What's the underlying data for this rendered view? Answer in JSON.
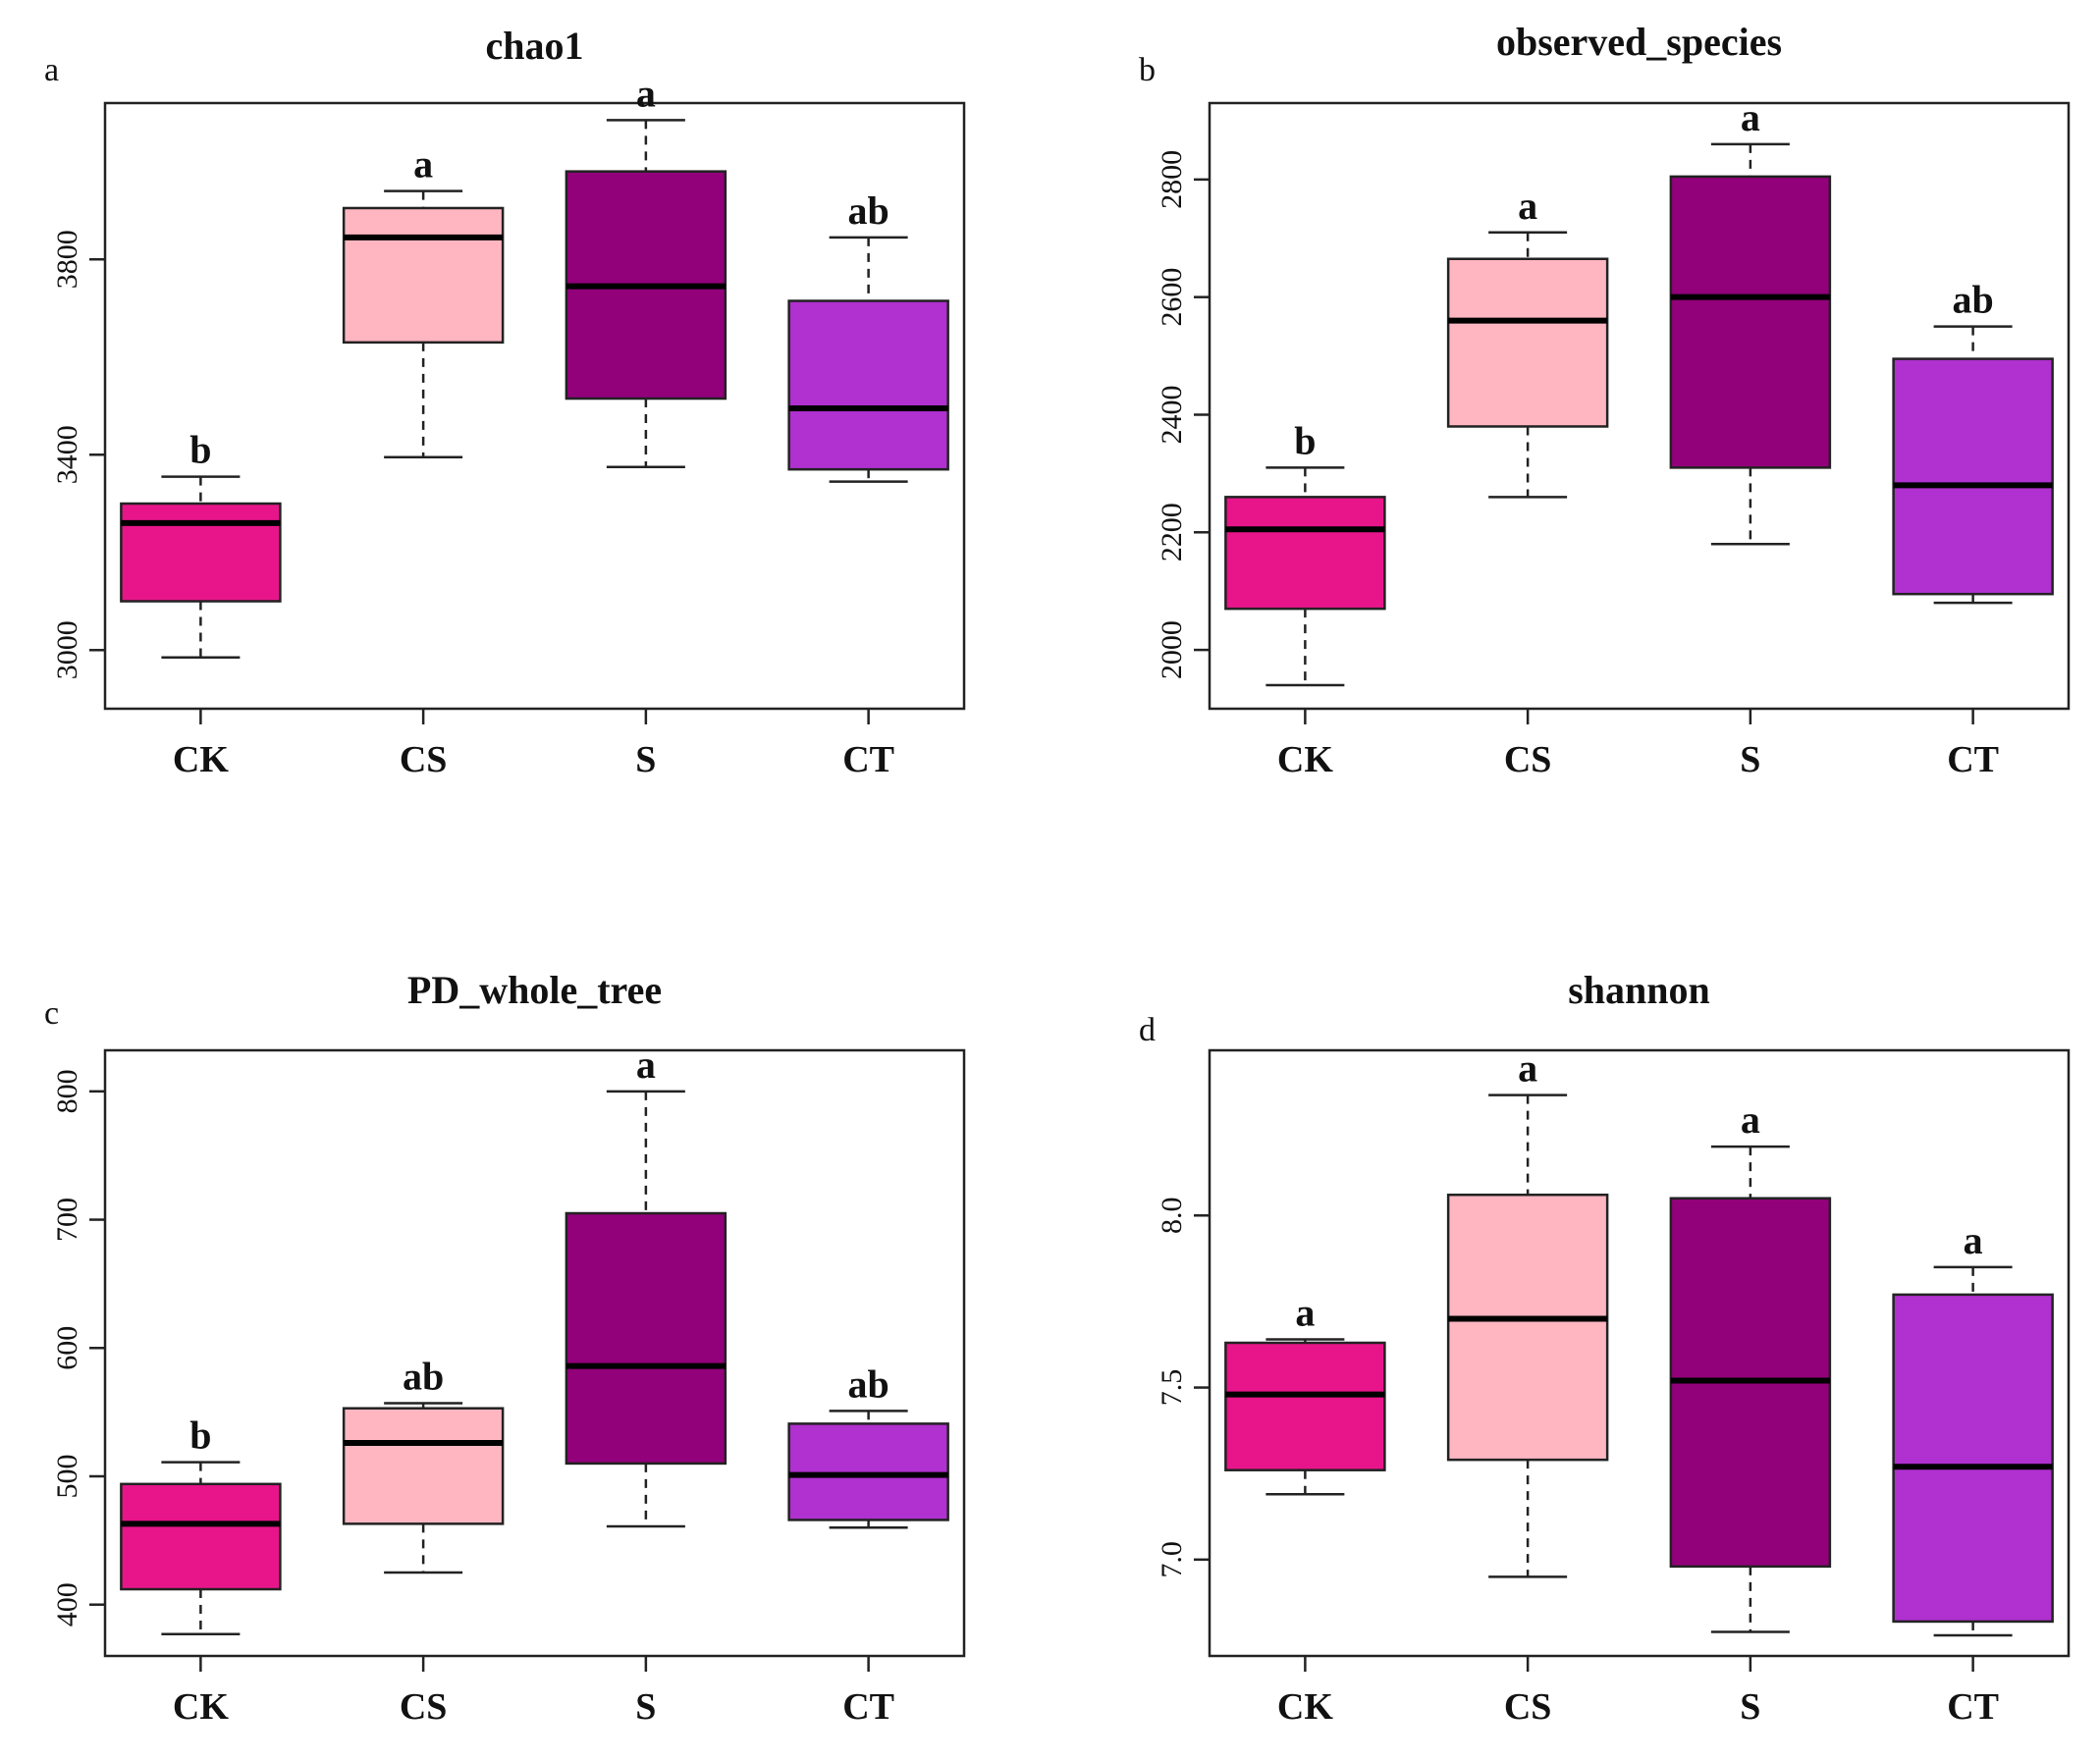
{
  "chart_data": [
    {
      "type": "boxplot",
      "panel_label": "a",
      "title": "chao1",
      "categories": [
        "CK",
        "CS",
        "S",
        "CT"
      ],
      "y_ticks": [
        3000,
        3400,
        3800
      ],
      "ylim": [
        2880,
        4120
      ],
      "boxes": [
        {
          "min": 2985,
          "q1": 3100,
          "median": 3260,
          "q3": 3300,
          "max": 3355
        },
        {
          "min": 3395,
          "q1": 3630,
          "median": 3845,
          "q3": 3905,
          "max": 3940
        },
        {
          "min": 3375,
          "q1": 3515,
          "median": 3745,
          "q3": 3980,
          "max": 4085
        },
        {
          "min": 3345,
          "q1": 3370,
          "median": 3495,
          "q3": 3715,
          "max": 3845
        }
      ],
      "significance": [
        "b",
        "a",
        "a",
        "ab"
      ],
      "colors": [
        "#e8158a",
        "#ffb6c1",
        "#92007a",
        "#b030d0"
      ]
    },
    {
      "type": "boxplot",
      "panel_label": "b",
      "title": "observed_species",
      "categories": [
        "CK",
        "CS",
        "S",
        "CT"
      ],
      "y_ticks": [
        2000,
        2200,
        2400,
        2600,
        2800
      ],
      "ylim": [
        1900,
        2930
      ],
      "boxes": [
        {
          "min": 1940,
          "q1": 2070,
          "median": 2205,
          "q3": 2260,
          "max": 2310
        },
        {
          "min": 2260,
          "q1": 2380,
          "median": 2560,
          "q3": 2665,
          "max": 2710
        },
        {
          "min": 2180,
          "q1": 2310,
          "median": 2600,
          "q3": 2805,
          "max": 2860
        },
        {
          "min": 2080,
          "q1": 2095,
          "median": 2280,
          "q3": 2495,
          "max": 2550
        }
      ],
      "significance": [
        "b",
        "a",
        "a",
        "ab"
      ],
      "colors": [
        "#e8158a",
        "#ffb6c1",
        "#92007a",
        "#b030d0"
      ]
    },
    {
      "type": "boxplot",
      "panel_label": "c",
      "title": "PD_whole_tree",
      "categories": [
        "CK",
        "CS",
        "S",
        "CT"
      ],
      "y_ticks": [
        400,
        500,
        600,
        700,
        800
      ],
      "ylim": [
        360,
        832
      ],
      "boxes": [
        {
          "min": 377,
          "q1": 412,
          "median": 463,
          "q3": 494,
          "max": 511
        },
        {
          "min": 425,
          "q1": 463,
          "median": 526,
          "q3": 553,
          "max": 557
        },
        {
          "min": 461,
          "q1": 510,
          "median": 586,
          "q3": 705,
          "max": 800
        },
        {
          "min": 460,
          "q1": 466,
          "median": 501,
          "q3": 541,
          "max": 551
        }
      ],
      "significance": [
        "b",
        "ab",
        "a",
        "ab"
      ],
      "colors": [
        "#e8158a",
        "#ffb6c1",
        "#92007a",
        "#b030d0"
      ]
    },
    {
      "type": "boxplot",
      "panel_label": "d",
      "title": "shannon",
      "categories": [
        "CK",
        "CS",
        "S",
        "CT"
      ],
      "y_ticks": [
        7.0,
        7.5,
        8.0
      ],
      "y_tick_labels": [
        "7.0",
        "7.5",
        "8.0"
      ],
      "ylim": [
        6.72,
        8.48
      ],
      "boxes": [
        {
          "min": 7.19,
          "q1": 7.26,
          "median": 7.48,
          "q3": 7.63,
          "max": 7.64
        },
        {
          "min": 6.95,
          "q1": 7.29,
          "median": 7.7,
          "q3": 8.06,
          "max": 8.35
        },
        {
          "min": 6.79,
          "q1": 6.98,
          "median": 7.52,
          "q3": 8.05,
          "max": 8.2
        },
        {
          "min": 6.78,
          "q1": 6.82,
          "median": 7.27,
          "q3": 7.77,
          "max": 7.85
        }
      ],
      "significance": [
        "a",
        "a",
        "a",
        "a"
      ],
      "colors": [
        "#e8158a",
        "#ffb6c1",
        "#92007a",
        "#b030d0"
      ]
    }
  ]
}
